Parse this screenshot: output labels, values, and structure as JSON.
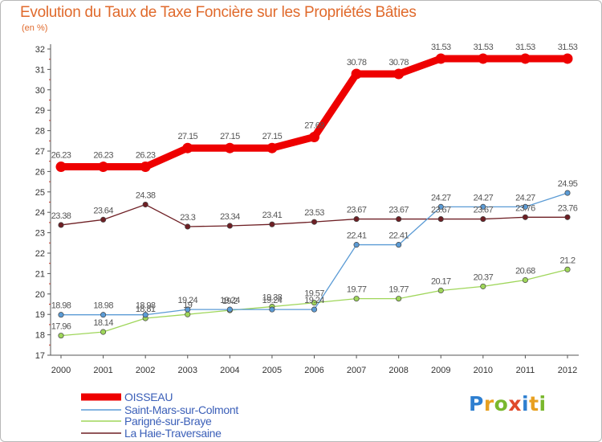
{
  "header": {
    "title": "Evolution du Taux de Taxe Foncière sur les Propriétés Bâties",
    "subtitle": "(en %)"
  },
  "logo": {
    "letters": [
      "P",
      "r",
      "o",
      "x",
      "i",
      "t",
      "i"
    ],
    "colors": [
      "#2e7fd0",
      "#e8a020",
      "#7ab82e",
      "#e04a2a",
      "#2e7fd0",
      "#e8a020",
      "#7ab82e"
    ]
  },
  "chart_data": {
    "type": "line",
    "title": "Evolution du Taux de Taxe Foncière sur les Propriétés Bâties",
    "ylabel": "(en %)",
    "xlabel": "",
    "x": [
      "2000",
      "2001",
      "2002",
      "2003",
      "2004",
      "2005",
      "2006",
      "2007",
      "2008",
      "2009",
      "2010",
      "2011",
      "2012"
    ],
    "ylim": [
      17,
      32
    ],
    "yticks": [
      "17",
      "18",
      "19",
      "20",
      "21",
      "22",
      "23",
      "24",
      "25",
      "26",
      "27",
      "28",
      "29",
      "30",
      "31",
      "32"
    ],
    "grid": false,
    "legend_position": "bottom-left",
    "series": [
      {
        "name": "La Haie-Traversaine",
        "color": "#6e1f24",
        "values": [
          23.38,
          23.64,
          24.38,
          23.3,
          23.34,
          23.41,
          23.53,
          23.67,
          23.67,
          23.67,
          23.67,
          23.76,
          23.76
        ],
        "labels": [
          "23.38",
          "23.64",
          "24.38",
          "23.3",
          "23.34",
          "23.41",
          "23.53",
          "23.67",
          "23.67",
          "23.67",
          "23.67",
          "23.76",
          "23.76"
        ]
      },
      {
        "name": "Parigné-sur-Braye",
        "color": "#9fd65a",
        "values": [
          17.96,
          18.14,
          18.81,
          19,
          19.2,
          19.38,
          19.57,
          19.77,
          19.77,
          20.17,
          20.37,
          20.68,
          21.2
        ],
        "labels": [
          "17.96",
          "18.14",
          "18.81",
          "19",
          "19.2",
          "19.38",
          "19.57",
          "19.77",
          "19.77",
          "20.17",
          "20.37",
          "20.68",
          "21.2"
        ]
      },
      {
        "name": "Saint-Mars-sur-Colmont",
        "color": "#5b9bd5",
        "values": [
          18.98,
          18.98,
          18.98,
          19.24,
          19.24,
          19.24,
          19.24,
          22.41,
          22.41,
          24.27,
          24.27,
          24.27,
          24.95
        ],
        "labels": [
          "18.98",
          "18.98",
          "18.98",
          "19.24",
          "19.24",
          "19.24",
          "19.24",
          "22.41",
          "22.41",
          "24.27",
          "24.27",
          "24.27",
          "24.95"
        ]
      },
      {
        "name": "OISSEAU",
        "color": "#ee0000",
        "values": [
          26.23,
          26.23,
          26.23,
          27.15,
          27.15,
          27.15,
          27.69,
          30.78,
          30.78,
          31.53,
          31.53,
          31.53,
          31.53
        ],
        "labels": [
          "26.23",
          "26.23",
          "26.23",
          "27.15",
          "27.15",
          "27.15",
          "27.69",
          "30.78",
          "30.78",
          "31.53",
          "31.53",
          "31.53",
          "31.53"
        ]
      }
    ],
    "legend": [
      "OISSEAU",
      "Saint-Mars-sur-Colmont",
      "Parigné-sur-Braye",
      "La Haie-Traversaine"
    ]
  }
}
